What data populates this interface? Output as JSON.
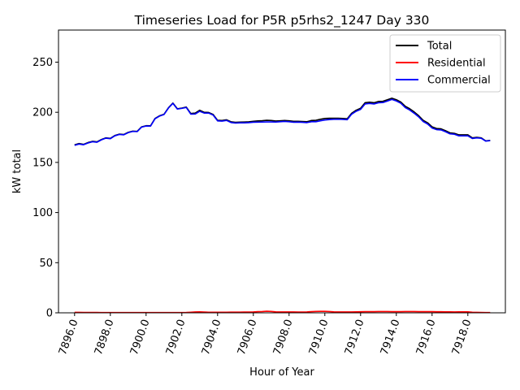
{
  "chart_data": {
    "type": "line",
    "title": "Timeseries Load for P5R p5rhs2_1247  Day 330",
    "xlabel": "Hour of Year",
    "ylabel": "kW total",
    "xlim": [
      7895.1,
      7920.1
    ],
    "ylim": [
      0,
      282
    ],
    "xticks": [
      7896,
      7898,
      7900,
      7902,
      7904,
      7906,
      7908,
      7910,
      7912,
      7914,
      7916,
      7918
    ],
    "xtick_labels": [
      "7896.0",
      "7898.0",
      "7900.0",
      "7902.0",
      "7904.0",
      "7906.0",
      "7908.0",
      "7910.0",
      "7912.0",
      "7914.0",
      "7916.0",
      "7918.0"
    ],
    "yticks": [
      0,
      50,
      100,
      150,
      200,
      250
    ],
    "ytick_labels": [
      "0",
      "50",
      "100",
      "150",
      "200",
      "250"
    ],
    "legend_position": "top-right",
    "grid": false,
    "x": [
      7896.0,
      7896.25,
      7896.5,
      7896.75,
      7897.0,
      7897.25,
      7897.5,
      7897.75,
      7898.0,
      7898.25,
      7898.5,
      7898.75,
      7899.0,
      7899.25,
      7899.5,
      7899.75,
      7900.0,
      7900.25,
      7900.5,
      7900.75,
      7901.0,
      7901.25,
      7901.5,
      7901.75,
      7902.0,
      7902.25,
      7902.5,
      7902.75,
      7903.0,
      7903.25,
      7903.5,
      7903.75,
      7904.0,
      7904.25,
      7904.5,
      7904.75,
      7905.0,
      7905.25,
      7905.5,
      7905.75,
      7906.0,
      7906.25,
      7906.5,
      7906.75,
      7907.0,
      7907.25,
      7907.5,
      7907.75,
      7908.0,
      7908.25,
      7908.5,
      7908.75,
      7909.0,
      7909.25,
      7909.5,
      7909.75,
      7910.0,
      7910.25,
      7910.5,
      7910.75,
      7911.0,
      7911.25,
      7911.5,
      7911.75,
      7912.0,
      7912.25,
      7912.5,
      7912.75,
      7913.0,
      7913.25,
      7913.5,
      7913.75,
      7914.0,
      7914.25,
      7914.5,
      7914.75,
      7915.0,
      7915.25,
      7915.5,
      7915.75,
      7916.0,
      7916.25,
      7916.5,
      7916.75,
      7917.0,
      7917.25,
      7917.5,
      7917.75,
      7918.0,
      7918.25,
      7918.5,
      7918.75,
      7919.0,
      7919.25
    ],
    "series": [
      {
        "name": "Total",
        "color": "#000000",
        "values": [
          167.5,
          168.8,
          168.0,
          169.8,
          171.0,
          170.5,
          172.8,
          174.5,
          174.0,
          176.8,
          178.2,
          177.8,
          180.0,
          181.2,
          181.0,
          185.5,
          186.6,
          186.5,
          193.8,
          196.5,
          198.0,
          204.5,
          209.2,
          203.5,
          204.2,
          205.2,
          198.8,
          199.2,
          202.0,
          200.0,
          199.8,
          197.8,
          192.0,
          191.8,
          192.5,
          190.5,
          190.0,
          190.2,
          190.3,
          190.5,
          191.0,
          191.4,
          191.6,
          192.0,
          191.8,
          191.3,
          191.5,
          191.8,
          191.5,
          191.0,
          191.0,
          190.8,
          190.6,
          191.8,
          192.0,
          193.0,
          193.8,
          194.0,
          194.0,
          194.0,
          193.8,
          193.5,
          199.0,
          202.0,
          204.0,
          209.5,
          210.0,
          209.5,
          210.8,
          211.0,
          212.5,
          214.0,
          212.5,
          210.2,
          206.0,
          203.5,
          200.3,
          196.6,
          192.0,
          189.5,
          185.5,
          183.8,
          183.5,
          181.6,
          179.5,
          179.0,
          177.5,
          177.5,
          177.5,
          174.5,
          175.0,
          174.5,
          171.5,
          172.0
        ]
      },
      {
        "name": "Residential",
        "color": "#ff0000",
        "values": [
          0.5,
          0.5,
          0.4,
          0.4,
          0.4,
          0.4,
          0.3,
          0.3,
          0.3,
          0.3,
          0.3,
          0.3,
          0.3,
          0.3,
          0.3,
          0.3,
          0.3,
          0.3,
          0.3,
          0.3,
          0.3,
          0.3,
          0.3,
          0.3,
          0.3,
          0.4,
          0.6,
          0.9,
          1.0,
          0.8,
          0.6,
          0.6,
          0.6,
          0.6,
          0.6,
          0.7,
          0.7,
          0.7,
          0.8,
          0.8,
          0.9,
          1.2,
          1.3,
          1.6,
          1.4,
          1.0,
          0.9,
          0.9,
          0.9,
          0.9,
          0.8,
          0.8,
          0.9,
          1.2,
          1.4,
          1.5,
          1.5,
          1.3,
          1.0,
          0.9,
          0.9,
          0.9,
          0.9,
          1.0,
          1.1,
          1.2,
          1.2,
          1.2,
          1.3,
          1.3,
          1.3,
          1.2,
          1.2,
          1.2,
          1.3,
          1.3,
          1.3,
          1.2,
          1.2,
          1.2,
          1.2,
          1.1,
          1.1,
          1.0,
          1.0,
          0.9,
          1.0,
          1.0,
          1.0,
          0.6,
          0.5,
          0.4,
          0.3,
          0.3
        ]
      },
      {
        "name": "Commercial",
        "color": "#0000ff",
        "values": [
          167.0,
          168.3,
          167.6,
          169.4,
          170.6,
          170.1,
          172.5,
          174.2,
          173.7,
          176.5,
          177.9,
          177.5,
          179.7,
          180.9,
          180.7,
          185.2,
          186.3,
          186.2,
          193.5,
          196.2,
          197.7,
          204.2,
          208.9,
          203.2,
          203.9,
          204.8,
          198.2,
          198.3,
          201.0,
          199.2,
          199.2,
          197.2,
          191.4,
          191.2,
          191.9,
          189.8,
          189.3,
          189.5,
          189.5,
          189.7,
          190.1,
          190.2,
          190.3,
          190.4,
          190.4,
          190.3,
          190.6,
          190.9,
          190.6,
          190.1,
          190.2,
          190.0,
          189.7,
          190.6,
          190.6,
          191.5,
          192.3,
          192.7,
          193.0,
          193.1,
          192.9,
          192.6,
          198.1,
          201.0,
          202.9,
          208.3,
          208.8,
          208.3,
          209.5,
          209.7,
          211.2,
          212.8,
          211.3,
          209.0,
          204.7,
          202.2,
          199.0,
          195.4,
          190.8,
          188.3,
          184.3,
          182.7,
          182.4,
          180.6,
          178.5,
          178.1,
          176.5,
          176.5,
          176.5,
          173.9,
          174.5,
          174.1,
          171.2,
          171.7
        ]
      }
    ]
  }
}
